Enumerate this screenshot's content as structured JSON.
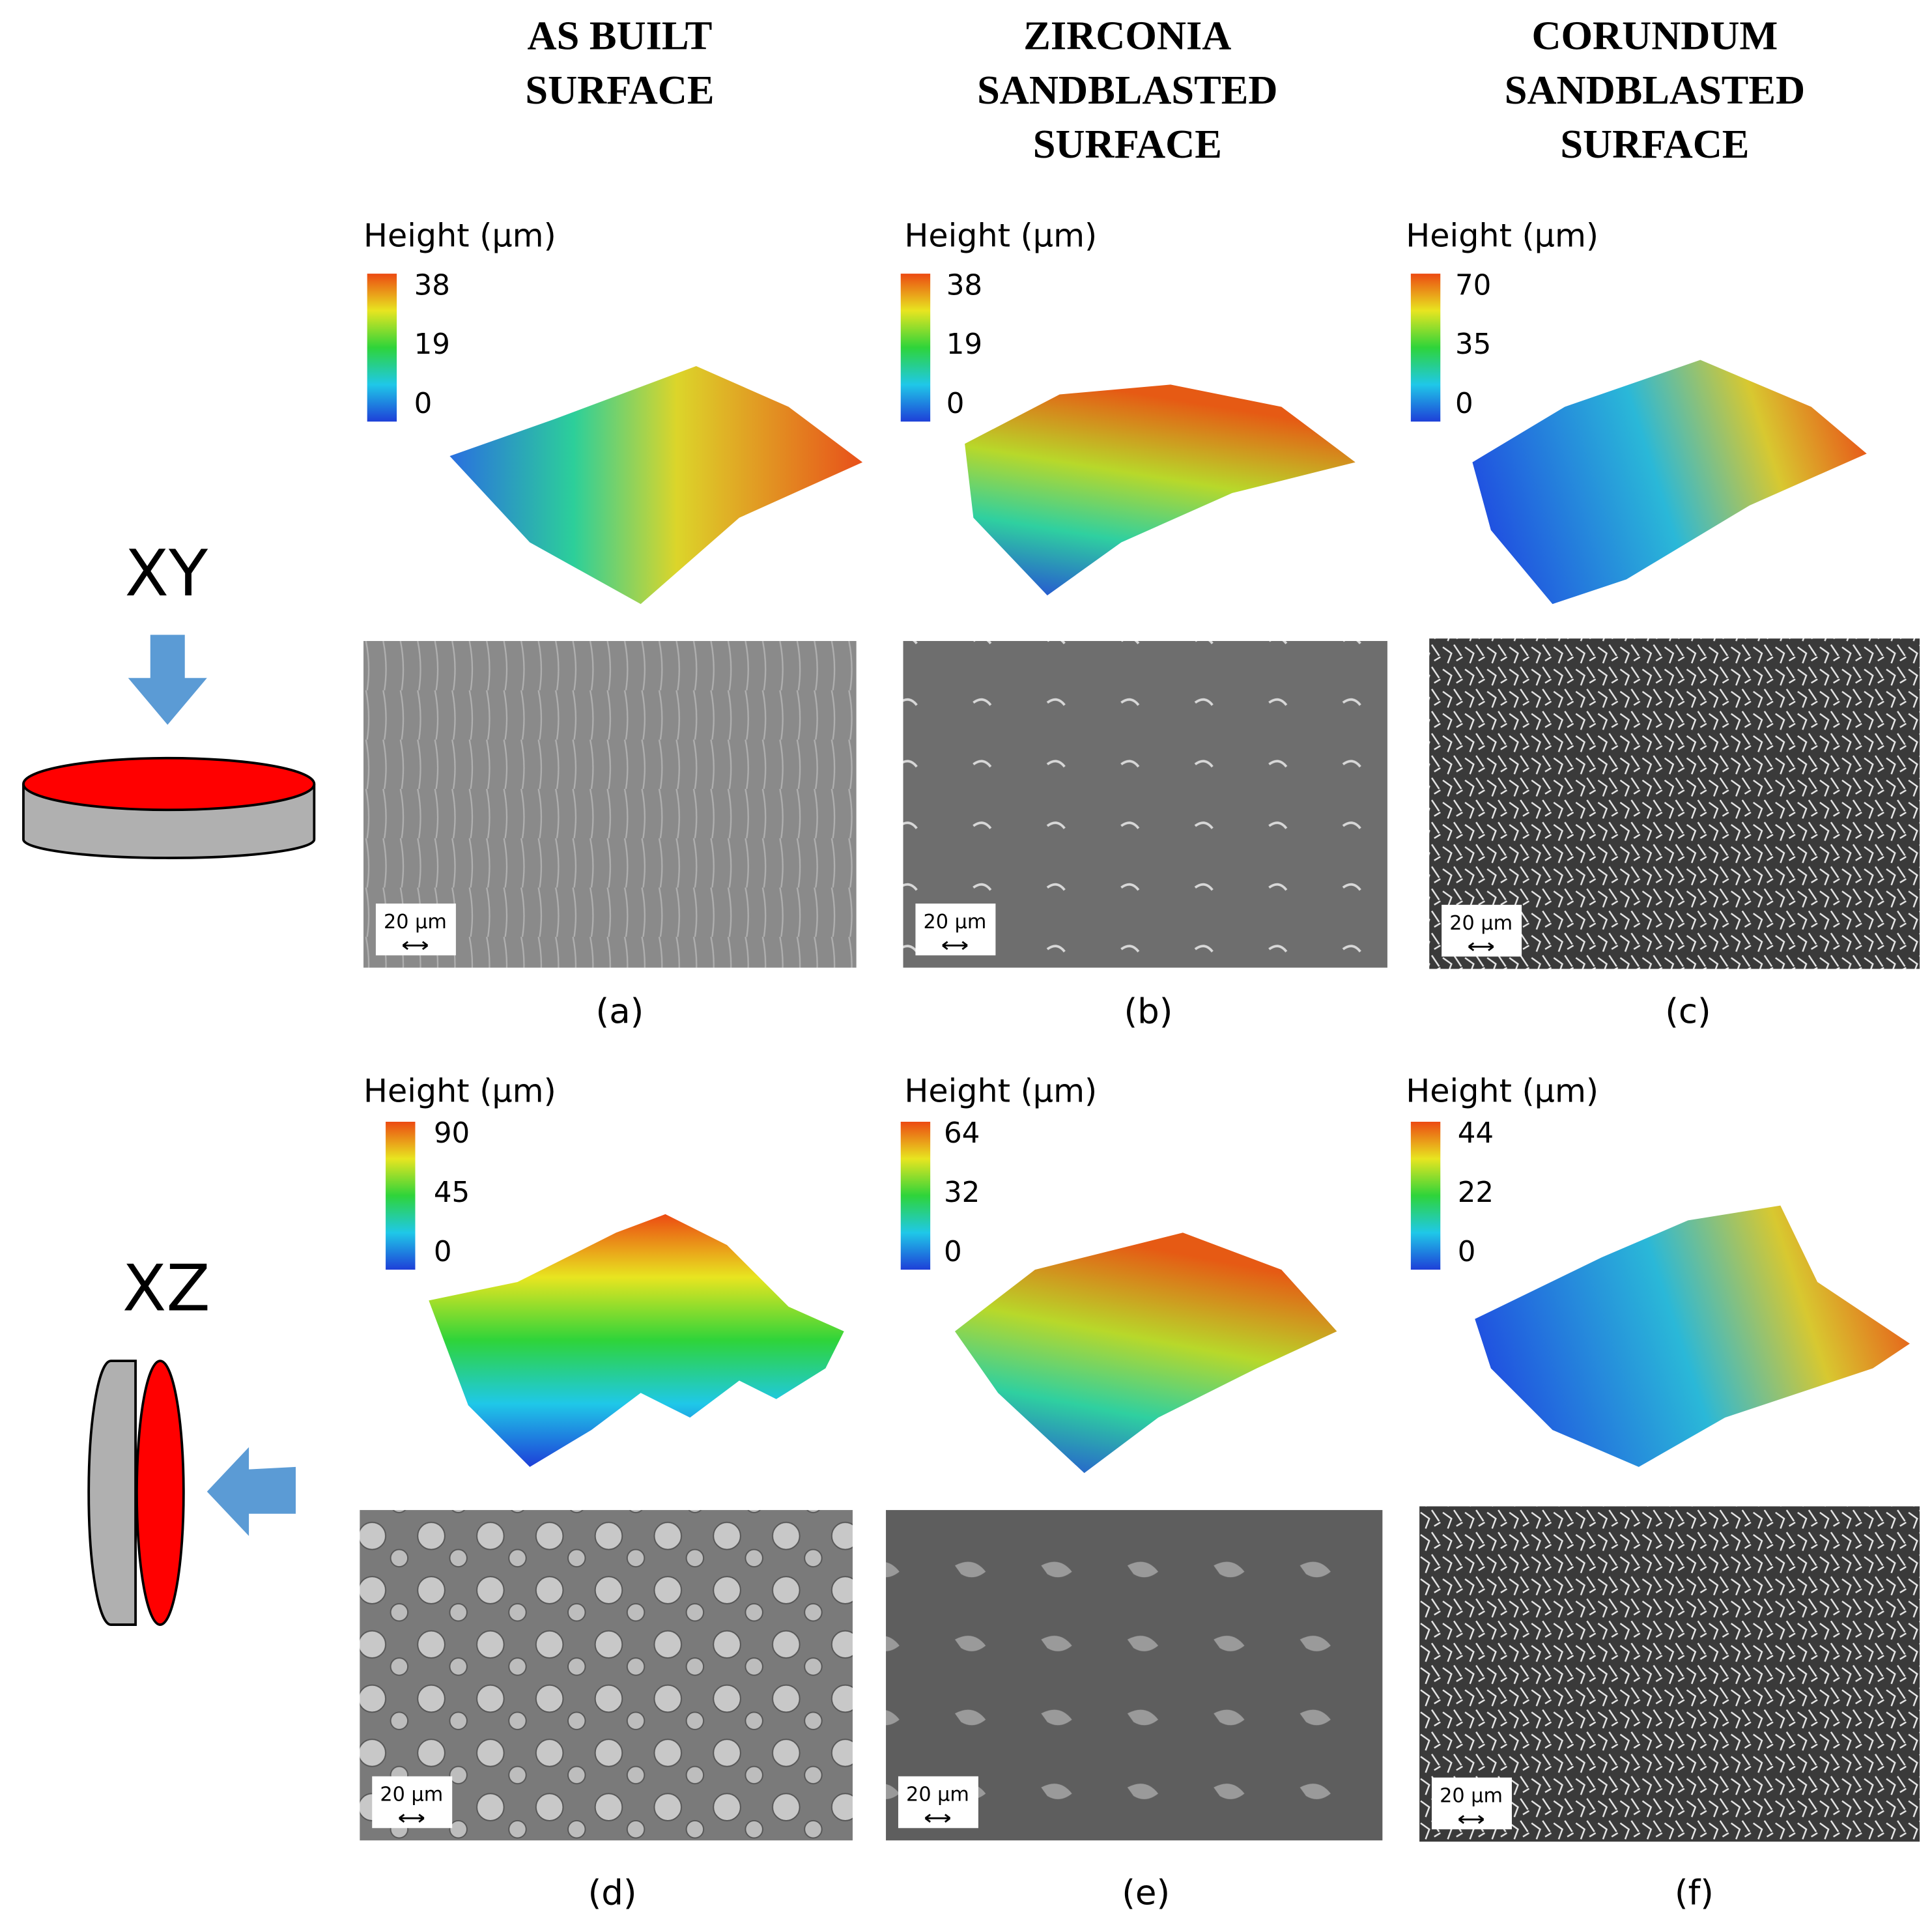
{
  "columns": [
    {
      "title": [
        "AS BUILT",
        "SURFACE"
      ]
    },
    {
      "title": [
        "ZIRCONIA",
        "SANDBLASTED",
        "SURFACE"
      ]
    },
    {
      "title": [
        "CORUNDUM",
        "SANDBLASTED",
        "SURFACE"
      ]
    }
  ],
  "rows": [
    {
      "label": "XY",
      "panels": [
        {
          "height_label": "Height (µm)",
          "colorbar_ticks": [
            38,
            19,
            0
          ],
          "scale_bar": "20 µm",
          "caption": "(a)"
        },
        {
          "height_label": "Height (µm)",
          "colorbar_ticks": [
            38,
            19,
            0
          ],
          "scale_bar": "20 µm",
          "caption": "(b)"
        },
        {
          "height_label": "Height (µm)",
          "colorbar_ticks": [
            70,
            35,
            0
          ],
          "scale_bar": "20 µm",
          "caption": "(c)"
        }
      ]
    },
    {
      "label": "XZ",
      "panels": [
        {
          "height_label": "Height (µm)",
          "colorbar_ticks": [
            90,
            45,
            0
          ],
          "scale_bar": "20 µm",
          "caption": "(d)"
        },
        {
          "height_label": "Height (µm)",
          "colorbar_ticks": [
            64,
            32,
            0
          ],
          "scale_bar": "20 µm",
          "caption": "(e)"
        },
        {
          "height_label": "Height (µm)",
          "colorbar_ticks": [
            44,
            22,
            0
          ],
          "scale_bar": "20 µm",
          "caption": "(f)"
        }
      ]
    }
  ]
}
